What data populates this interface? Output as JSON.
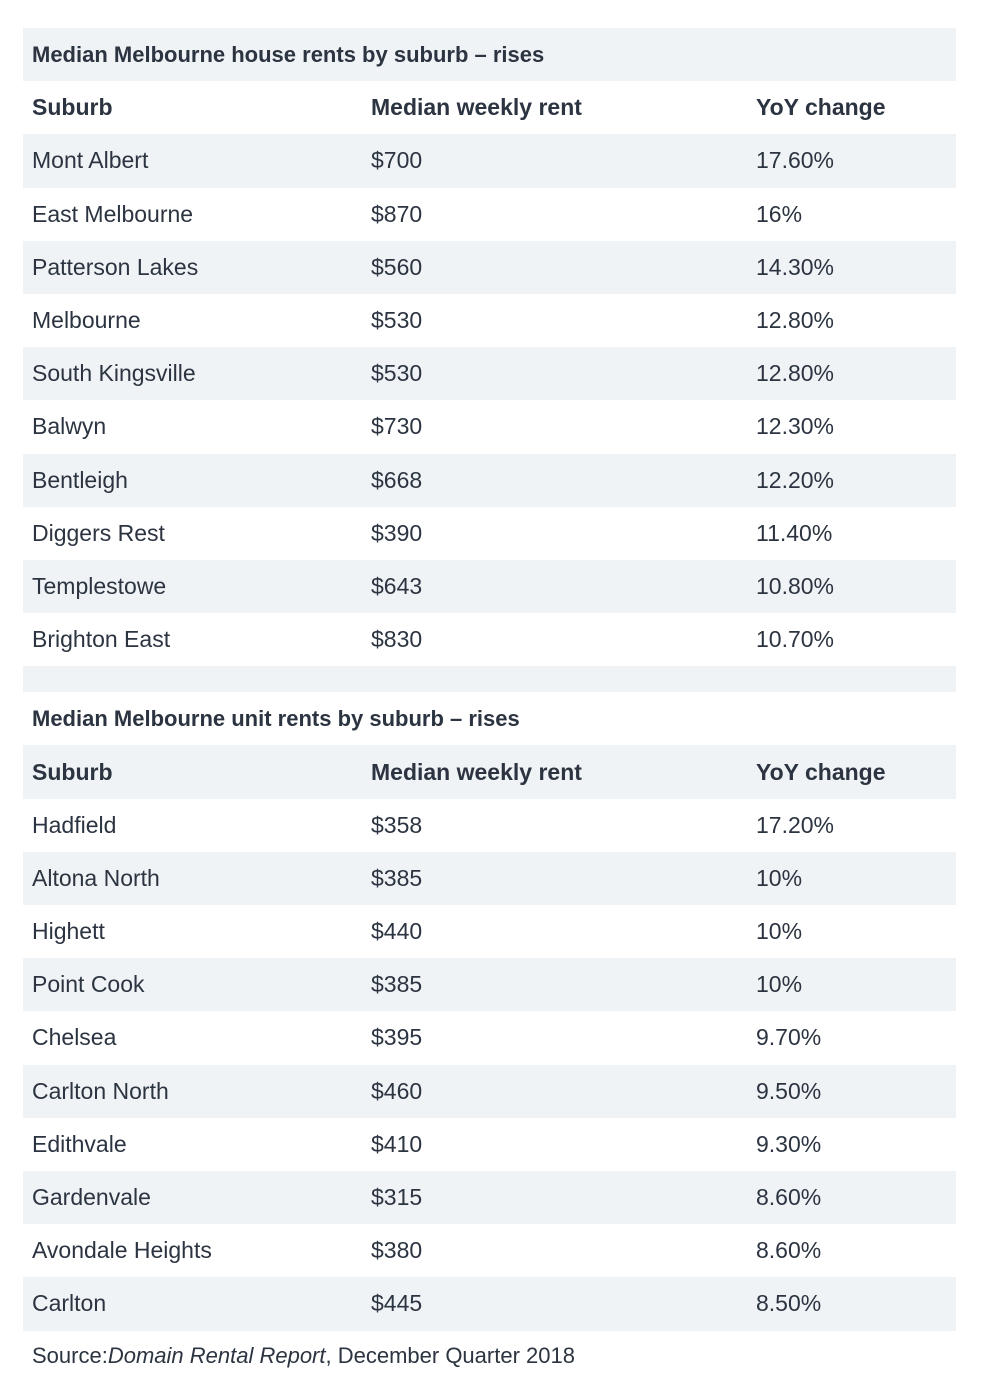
{
  "houses": {
    "title": "Median Melbourne house rents by suburb – rises",
    "headers": [
      "Suburb",
      "Median weekly rent",
      "YoY change"
    ],
    "rows": [
      [
        "Mont Albert",
        "$700",
        "17.60%"
      ],
      [
        "East Melbourne",
        "$870",
        "16%"
      ],
      [
        "Patterson Lakes",
        "$560",
        "14.30%"
      ],
      [
        "Melbourne",
        "$530",
        "12.80%"
      ],
      [
        "South Kingsville",
        "$530",
        "12.80%"
      ],
      [
        "Balwyn",
        "$730",
        "12.30%"
      ],
      [
        "Bentleigh",
        "$668",
        "12.20%"
      ],
      [
        "Diggers Rest",
        "$390",
        "11.40%"
      ],
      [
        "Templestowe",
        "$643",
        "10.80%"
      ],
      [
        "Brighton East",
        "$830",
        "10.70%"
      ]
    ]
  },
  "units": {
    "title": "Median Melbourne unit rents by suburb – rises",
    "headers": [
      "Suburb",
      "Median weekly rent",
      "YoY change"
    ],
    "rows": [
      [
        "Hadfield",
        "$358",
        "17.20%"
      ],
      [
        "Altona North",
        "$385",
        "10%"
      ],
      [
        "Highett",
        "$440",
        "10%"
      ],
      [
        "Point Cook",
        "$385",
        "10%"
      ],
      [
        "Chelsea",
        "$395",
        "9.70%"
      ],
      [
        "Carlton North",
        "$460",
        "9.50%"
      ],
      [
        "Edithvale",
        "$410",
        "9.30%"
      ],
      [
        "Gardenvale",
        "$315",
        "8.60%"
      ],
      [
        "Avondale Heights",
        "$380",
        "8.60%"
      ],
      [
        "Carlton",
        "$445",
        "8.50%"
      ]
    ]
  },
  "source": {
    "prefix": "Source: ",
    "report": "Domain Rental Report",
    "suffix": ", December Quarter 2018"
  }
}
